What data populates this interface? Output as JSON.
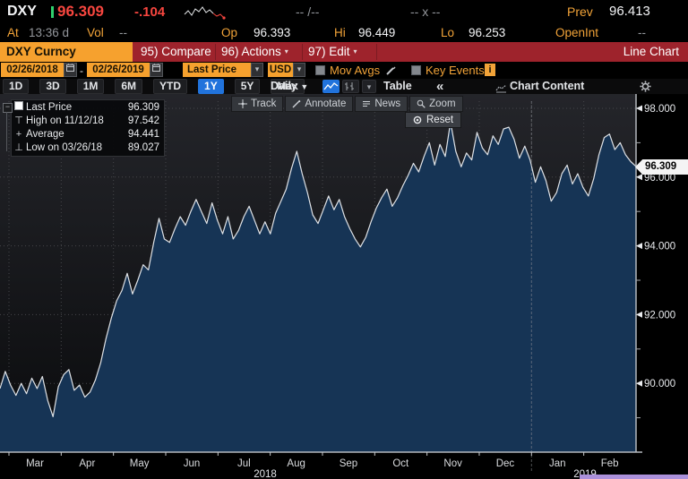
{
  "quote_bar": {
    "symbol": "DXY",
    "last": "96.309",
    "change": "-.104",
    "bid_ask": "-- /--",
    "market_x": "-- x --",
    "prev_label": "Prev",
    "prev": "96.413",
    "at_label": "At",
    "at_time": "13:36 d",
    "vol_label": "Vol",
    "vol": "--",
    "op_label": "Op",
    "op": "96.393",
    "hi_label": "Hi",
    "hi": "96.449",
    "lo_label": "Lo",
    "lo": "96.253",
    "openint_label": "OpenInt",
    "openint": "--"
  },
  "menu_bar": {
    "security": "DXY Curncy",
    "compare": "95) Compare",
    "actions": "96) Actions",
    "edit": "97) Edit",
    "chart_type": "Line Chart"
  },
  "settings_bar": {
    "date_from": "02/26/2018",
    "date_to": "02/26/2019",
    "field": "Last Price",
    "currency": "USD",
    "mov_avgs_label": "Mov Avgs",
    "key_events_label": "Key Events"
  },
  "period_bar": {
    "ranges": [
      "1D",
      "3D",
      "1M",
      "6M",
      "YTD",
      "1Y",
      "5Y",
      "Max"
    ],
    "selected_range": "1Y",
    "frequency": "Daily",
    "table_label": "Table",
    "chart_content_label": "Chart Content"
  },
  "chart_toolbar": {
    "track": "Track",
    "annotate": "Annotate",
    "news": "News",
    "zoom": "Zoom",
    "reset": "Reset"
  },
  "legend": {
    "rows": [
      {
        "label": "Last Price",
        "value": "96.309"
      },
      {
        "label": "High on 11/12/18",
        "value": "97.542"
      },
      {
        "label": "Average",
        "value": "94.441"
      },
      {
        "label": "Low on 03/26/18",
        "value": "89.027"
      }
    ]
  },
  "axis": {
    "last_price_badge": "96.309"
  },
  "icons": {
    "chevron_down": "▼",
    "dropdown_small": "▾",
    "collapse": "«",
    "info": "i",
    "expand_minus": "−",
    "date_sep": "-"
  },
  "chart_data": {
    "type": "area",
    "title": "DXY Curncy Last Price line chart, 02/26/2018 - 02/26/2019",
    "x_range": [
      "02/26/2018",
      "02/26/2019"
    ],
    "x_month_labels": [
      "Mar",
      "Apr",
      "May",
      "Jun",
      "Jul",
      "Aug",
      "Sep",
      "Oct",
      "Nov",
      "Dec",
      "Jan",
      "Feb"
    ],
    "year_labels": [
      "2018",
      "2019"
    ],
    "y_ticks": [
      98,
      96,
      94,
      92,
      90
    ],
    "y_minor_ticks": [
      97,
      95,
      93,
      91,
      89
    ],
    "ylim": [
      88.0,
      98.42
    ],
    "grid": true,
    "last": 96.309,
    "high": 97.542,
    "average": 94.441,
    "low": 89.027,
    "values": [
      89.85,
      90.35,
      89.95,
      89.65,
      90.0,
      89.7,
      90.15,
      89.85,
      90.2,
      89.5,
      89.03,
      89.9,
      90.25,
      90.4,
      89.8,
      89.95,
      89.6,
      89.75,
      90.1,
      90.6,
      91.3,
      91.9,
      92.4,
      92.7,
      93.2,
      92.6,
      93.0,
      93.45,
      93.3,
      94.1,
      94.8,
      94.2,
      94.1,
      94.5,
      94.85,
      94.6,
      95.0,
      95.35,
      95.0,
      94.65,
      95.25,
      94.75,
      94.35,
      94.85,
      94.2,
      94.45,
      94.85,
      95.15,
      94.75,
      94.35,
      94.7,
      94.35,
      94.95,
      95.3,
      95.65,
      96.25,
      96.75,
      96.1,
      95.55,
      94.9,
      94.65,
      95.05,
      95.45,
      95.05,
      95.35,
      94.85,
      94.5,
      94.2,
      93.97,
      94.25,
      94.7,
      95.1,
      95.4,
      95.65,
      95.15,
      95.4,
      95.75,
      96.05,
      96.4,
      96.15,
      96.6,
      97.0,
      96.35,
      96.95,
      96.6,
      97.6,
      96.75,
      96.3,
      96.7,
      96.5,
      97.3,
      96.85,
      96.65,
      97.2,
      96.95,
      97.4,
      97.45,
      97.1,
      96.55,
      96.9,
      96.5,
      95.85,
      96.3,
      95.9,
      95.3,
      95.55,
      96.1,
      96.35,
      95.8,
      96.1,
      95.7,
      95.45,
      95.95,
      96.65,
      97.15,
      97.25,
      96.8,
      97.0,
      96.65,
      96.45,
      96.309
    ],
    "colors": {
      "line": "#dfe2e6",
      "fill": "#163455",
      "grid": "#45464a",
      "axis": "#b4b8bd",
      "bg_top": "#24252a",
      "bg_bottom": "#0a0b0d",
      "down_red": "#f7463f",
      "up_green": "#2fd06d",
      "amber": "#f2a338",
      "menu_red": "#9e232c",
      "selected_blue": "#2173dc"
    }
  }
}
